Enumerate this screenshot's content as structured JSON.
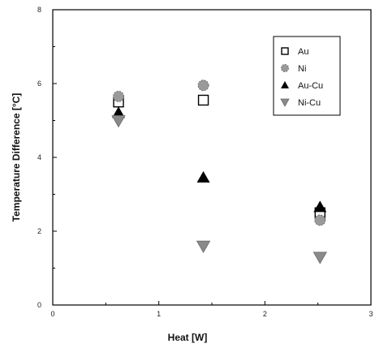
{
  "chart_data": {
    "type": "scatter",
    "title": "",
    "xlabel": "Heat  [W]",
    "ylabel": "Temperature Difference [°C]",
    "xlim": [
      0,
      3
    ],
    "ylim": [
      0,
      8
    ],
    "x_ticks": [
      "0",
      "1",
      "2",
      "3"
    ],
    "y_ticks": [
      "0",
      "2",
      "4",
      "6",
      "8"
    ],
    "grid": false,
    "legend_position": "top-right",
    "series": [
      {
        "name": "Au",
        "marker": "open-square",
        "color": "#000000",
        "points": [
          [
            0.62,
            5.5
          ],
          [
            1.42,
            5.55
          ],
          [
            2.52,
            2.5
          ]
        ]
      },
      {
        "name": "Ni",
        "marker": "gray-circle",
        "color": "#9a9a9a",
        "points": [
          [
            0.62,
            5.65
          ],
          [
            1.42,
            5.95
          ],
          [
            2.52,
            2.3
          ]
        ]
      },
      {
        "name": "Au-Cu",
        "marker": "filled-triangle-up",
        "color": "#000000",
        "points": [
          [
            0.62,
            5.2
          ],
          [
            1.42,
            3.45
          ],
          [
            2.52,
            2.65
          ]
        ]
      },
      {
        "name": "Ni-Cu",
        "marker": "gray-triangle-down",
        "color": "#8a8a8a",
        "points": [
          [
            0.62,
            5.0
          ],
          [
            1.42,
            1.6
          ],
          [
            2.52,
            1.3
          ]
        ]
      }
    ]
  }
}
